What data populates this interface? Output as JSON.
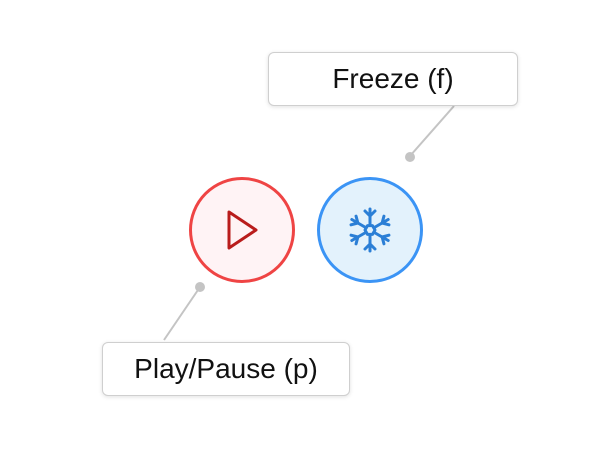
{
  "play_button": {
    "icon": "play-icon",
    "border_color": "#ef4444",
    "fill_color": "#fff3f5",
    "icon_color": "#b91c1c"
  },
  "freeze_button": {
    "icon": "snowflake-icon",
    "border_color": "#3b94f5",
    "fill_color": "#e3f2fc",
    "icon_color": "#2b7fd6"
  },
  "tooltips": {
    "freeze_label": "Freeze (f)",
    "play_label": "Play/Pause (p)"
  },
  "connector_color": "#c4c4c4"
}
